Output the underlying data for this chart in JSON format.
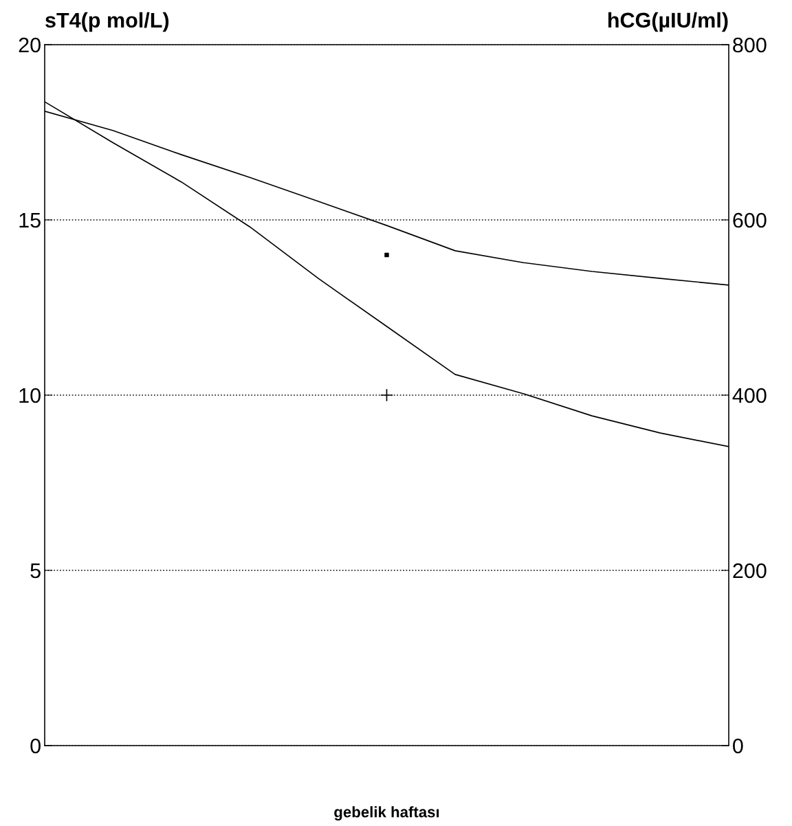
{
  "chart_data": {
    "type": "line",
    "ylabel": "sT4(p mol/L)",
    "y2label": "hCG(µIU/ml)",
    "xlabel": "gebelik haftası",
    "categories": [
      null,
      null,
      null,
      null,
      null,
      null,
      null,
      null,
      null,
      null,
      null
    ],
    "series": [
      {
        "color": "#000000",
        "values": [
          18.1,
          17.55,
          16.86,
          16.21,
          15.53,
          14.84,
          14.12,
          13.78,
          13.53,
          13.33,
          13.14
        ]
      },
      {
        "color": "#000000",
        "values": [
          18.37,
          17.2,
          16.08,
          14.8,
          13.33,
          11.96,
          10.59,
          10.04,
          9.41,
          8.92,
          8.53
        ]
      },
      {
        "type": "scatter",
        "marker": "square",
        "color": "#000000",
        "values": [
          null,
          null,
          null,
          null,
          null,
          14,
          null,
          null,
          null,
          null,
          null
        ]
      },
      {
        "type": "scatter",
        "marker": "cross",
        "color": "#000000",
        "values": [
          null,
          null,
          null,
          null,
          null,
          10,
          null,
          null,
          null,
          null,
          null
        ]
      }
    ],
    "ylim": [
      0,
      20
    ],
    "yticks": [
      0,
      5,
      10,
      15,
      20
    ],
    "y2lim": [
      0,
      800
    ],
    "y2ticks": [
      0,
      200,
      400,
      600,
      800
    ],
    "grid": "y",
    "marker": "none",
    "line_style": "solid",
    "legend": false
  }
}
